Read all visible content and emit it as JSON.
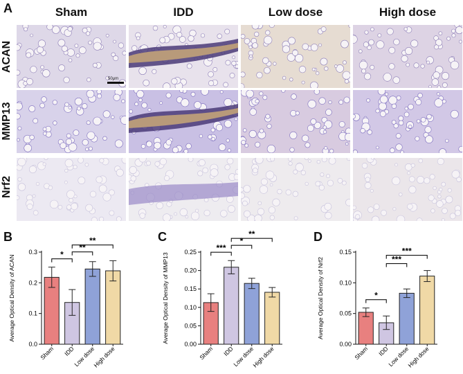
{
  "panel_labels": {
    "a": "A",
    "b": "B",
    "c": "C",
    "d": "D"
  },
  "columns": [
    "Sham",
    "IDD",
    "Low dose",
    "High dose"
  ],
  "rows": [
    "ACAN",
    "MMP13",
    "Nrf2"
  ],
  "scale_bar_label": "50μm",
  "chart_data": [
    {
      "type": "bar",
      "panel": "B",
      "ylabel": "Average Optical Density of ACAN",
      "categories": [
        "Sham",
        "IDD",
        "Low dose",
        "High dose"
      ],
      "values": [
        0.218,
        0.136,
        0.245,
        0.239
      ],
      "errors": [
        0.033,
        0.042,
        0.024,
        0.033
      ],
      "ylim": [
        0,
        0.3
      ],
      "yticks": [
        "0.0",
        "0.1",
        "0.2",
        "0.3"
      ],
      "colors": [
        "#e8807f",
        "#cfc6e2",
        "#8fa2d8",
        "#f0d9a6"
      ],
      "significance": [
        {
          "from": 0,
          "to": 1,
          "label": "*"
        },
        {
          "from": 1,
          "to": 2,
          "label": "**"
        },
        {
          "from": 1,
          "to": 3,
          "label": "**"
        }
      ]
    },
    {
      "type": "bar",
      "panel": "C",
      "ylabel": "Average Optical Density of MMP13",
      "categories": [
        "Sham",
        "IDD",
        "Low dose",
        "High dose"
      ],
      "values": [
        0.113,
        0.209,
        0.165,
        0.141
      ],
      "errors": [
        0.024,
        0.018,
        0.014,
        0.013
      ],
      "ylim": [
        0,
        0.25
      ],
      "yticks": [
        "0.00",
        "0.05",
        "0.10",
        "0.15",
        "0.20",
        "0.25"
      ],
      "colors": [
        "#e8807f",
        "#cfc6e2",
        "#8fa2d8",
        "#f0d9a6"
      ],
      "significance": [
        {
          "from": 0,
          "to": 1,
          "label": "***"
        },
        {
          "from": 1,
          "to": 2,
          "label": "*"
        },
        {
          "from": 1,
          "to": 3,
          "label": "**"
        }
      ]
    },
    {
      "type": "bar",
      "panel": "D",
      "ylabel": "Average Optical Density of Nrf2",
      "categories": [
        "Sham",
        "IDD",
        "Low dose",
        "High dose"
      ],
      "values": [
        0.052,
        0.035,
        0.083,
        0.111
      ],
      "errors": [
        0.007,
        0.011,
        0.007,
        0.009
      ],
      "ylim": [
        0,
        0.15
      ],
      "yticks": [
        "0.00",
        "0.05",
        "0.10",
        "0.15"
      ],
      "colors": [
        "#e8807f",
        "#cfc6e2",
        "#8fa2d8",
        "#f0d9a6"
      ],
      "significance": [
        {
          "from": 0,
          "to": 1,
          "label": "*"
        },
        {
          "from": 1,
          "to": 2,
          "label": "***"
        },
        {
          "from": 1,
          "to": 3,
          "label": "***"
        }
      ]
    }
  ]
}
